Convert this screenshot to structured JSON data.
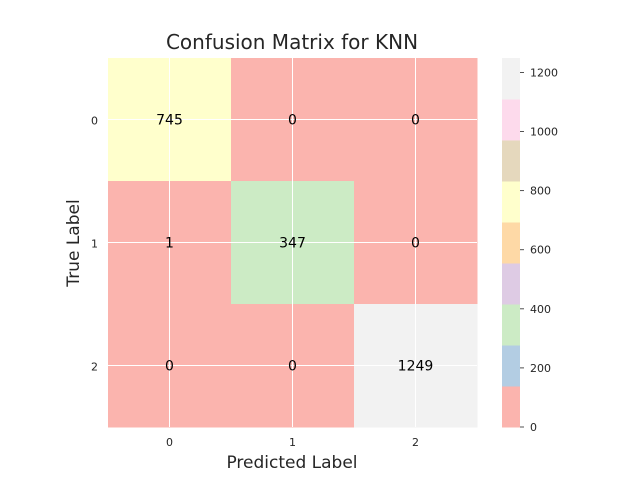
{
  "chart_data": {
    "type": "heatmap",
    "title": "Confusion Matrix for KNN",
    "xlabel": "Predicted Label",
    "ylabel": "True Label",
    "x_categories": [
      "0",
      "1",
      "2"
    ],
    "y_categories": [
      "0",
      "1",
      "2"
    ],
    "matrix": [
      [
        745,
        0,
        0
      ],
      [
        1,
        347,
        0
      ],
      [
        0,
        0,
        1249
      ]
    ],
    "colormap": "Pastel1",
    "colorbar": {
      "range": [
        0,
        1249
      ],
      "ticks": [
        0,
        200,
        400,
        600,
        800,
        1000,
        1200
      ],
      "tick_labels": [
        "0",
        "200",
        "400",
        "600",
        "800",
        "1000",
        "1200"
      ],
      "colors": [
        "#fbb4ae",
        "#b3cde3",
        "#ccebc5",
        "#decbe4",
        "#fed9a6",
        "#ffffcc",
        "#e5d8bd",
        "#fddaec",
        "#f2f2f2"
      ]
    },
    "grid": true
  }
}
